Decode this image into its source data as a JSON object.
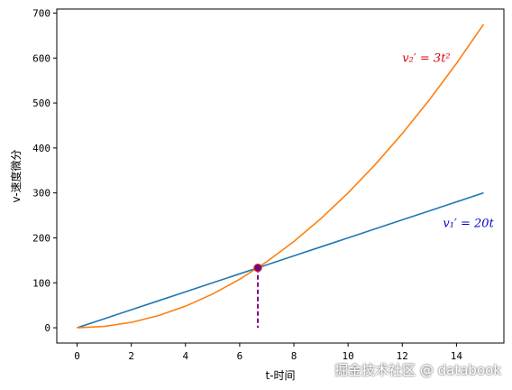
{
  "chart_data": {
    "type": "line",
    "xlabel": "t-时间",
    "ylabel": "v-速度微分",
    "xlim": [
      -0.75,
      15.75
    ],
    "ylim": [
      -34,
      709
    ],
    "xticks": [
      0,
      2,
      4,
      6,
      8,
      10,
      12,
      14
    ],
    "yticks": [
      0,
      100,
      200,
      300,
      400,
      500,
      600,
      700
    ],
    "grid": false,
    "series": [
      {
        "color": "#1f77b4",
        "x": [
          0,
          1,
          2,
          3,
          4,
          5,
          6,
          7,
          8,
          9,
          10,
          11,
          12,
          13,
          14,
          15
        ],
        "y": [
          0,
          20,
          40,
          60,
          80,
          100,
          120,
          140,
          160,
          180,
          200,
          220,
          240,
          260,
          280,
          300
        ]
      },
      {
        "color": "#ff7f0e",
        "x": [
          0,
          1,
          2,
          3,
          4,
          5,
          6,
          7,
          8,
          9,
          10,
          11,
          12,
          13,
          14,
          15
        ],
        "y": [
          0,
          3,
          12,
          27,
          48,
          75,
          108,
          147,
          192,
          243,
          300,
          363,
          432,
          507,
          588,
          675
        ]
      }
    ],
    "intersection": {
      "x": 6.67,
      "y": 133.3,
      "color": "#800080"
    },
    "annotations": [
      {
        "text": "v₂′ = 3t²",
        "x": 12,
        "y": 600,
        "color": "#e00000"
      },
      {
        "text": "v₁′ = 20t",
        "x": 13.5,
        "y": 232,
        "color": "#0000d0"
      }
    ]
  },
  "watermark": "掘金技术社区 @ databook"
}
